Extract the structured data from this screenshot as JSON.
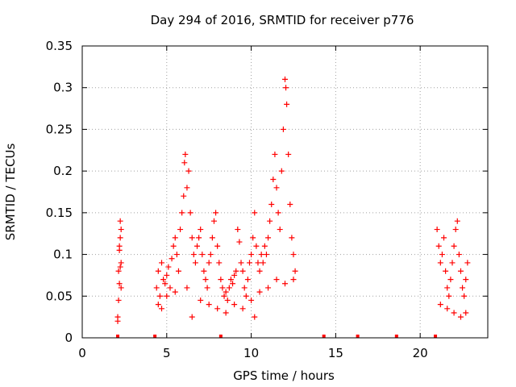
{
  "chart_data": {
    "type": "scatter",
    "title": "Day 294 of 2016, SRMTID for receiver p776",
    "xlabel": "GPS time / hours",
    "ylabel": "SRMTID / TECUs",
    "xlim": [
      0,
      24
    ],
    "ylim": [
      0,
      0.35
    ],
    "x_ticks": [
      0,
      5,
      10,
      15,
      20
    ],
    "x_tick_labels": [
      "0",
      "5",
      "10",
      "15",
      "20"
    ],
    "y_ticks": [
      0,
      0.05,
      0.1,
      0.15,
      0.2,
      0.25,
      0.3,
      0.35
    ],
    "y_tick_labels": [
      "0",
      "0.05",
      "0.1",
      "0.15",
      "0.2",
      "0.25",
      "0.3",
      "0.35"
    ],
    "grid": true,
    "marker": "plus",
    "color": "#ff0000",
    "zero_markers_x": [
      2.1,
      4.3,
      8.2,
      14.3,
      16.3,
      18.6,
      20.9
    ],
    "series": [
      {
        "points": [
          [
            2.1,
            0.02
          ],
          [
            2.15,
            0.045
          ],
          [
            2.2,
            0.065
          ],
          [
            2.25,
            0.085
          ],
          [
            2.3,
            0.09
          ],
          [
            2.2,
            0.11
          ],
          [
            2.25,
            0.12
          ],
          [
            2.3,
            0.13
          ],
          [
            2.25,
            0.14
          ],
          [
            2.2,
            0.105
          ],
          [
            2.15,
            0.08
          ],
          [
            2.1,
            0.025
          ],
          [
            2.3,
            0.06
          ],
          [
            4.4,
            0.06
          ],
          [
            4.5,
            0.08
          ],
          [
            4.6,
            0.05
          ],
          [
            4.7,
            0.09
          ],
          [
            4.8,
            0.07
          ],
          [
            4.9,
            0.065
          ],
          [
            5.0,
            0.075
          ],
          [
            5.1,
            0.085
          ],
          [
            5.2,
            0.06
          ],
          [
            5.3,
            0.095
          ],
          [
            5.4,
            0.11
          ],
          [
            5.5,
            0.12
          ],
          [
            5.6,
            0.1
          ],
          [
            5.7,
            0.08
          ],
          [
            5.8,
            0.13
          ],
          [
            5.9,
            0.15
          ],
          [
            6.0,
            0.17
          ],
          [
            6.05,
            0.21
          ],
          [
            6.1,
            0.22
          ],
          [
            6.2,
            0.18
          ],
          [
            6.3,
            0.2
          ],
          [
            6.4,
            0.15
          ],
          [
            6.5,
            0.12
          ],
          [
            6.6,
            0.1
          ],
          [
            6.7,
            0.09
          ],
          [
            6.8,
            0.11
          ],
          [
            6.9,
            0.12
          ],
          [
            7.0,
            0.13
          ],
          [
            7.1,
            0.1
          ],
          [
            7.2,
            0.08
          ],
          [
            7.3,
            0.07
          ],
          [
            7.4,
            0.06
          ],
          [
            7.5,
            0.09
          ],
          [
            7.6,
            0.1
          ],
          [
            7.7,
            0.12
          ],
          [
            7.8,
            0.14
          ],
          [
            7.9,
            0.15
          ],
          [
            8.0,
            0.11
          ],
          [
            8.1,
            0.09
          ],
          [
            8.2,
            0.07
          ],
          [
            8.3,
            0.06
          ],
          [
            8.4,
            0.05
          ],
          [
            8.5,
            0.055
          ],
          [
            8.6,
            0.045
          ],
          [
            8.7,
            0.06
          ],
          [
            8.8,
            0.07
          ],
          [
            8.9,
            0.065
          ],
          [
            9.0,
            0.075
          ],
          [
            9.1,
            0.08
          ],
          [
            9.2,
            0.13
          ],
          [
            9.3,
            0.115
          ],
          [
            9.4,
            0.09
          ],
          [
            9.5,
            0.08
          ],
          [
            9.6,
            0.06
          ],
          [
            9.7,
            0.05
          ],
          [
            9.8,
            0.07
          ],
          [
            9.9,
            0.09
          ],
          [
            10.0,
            0.1
          ],
          [
            10.1,
            0.12
          ],
          [
            10.2,
            0.15
          ],
          [
            10.3,
            0.11
          ],
          [
            10.4,
            0.09
          ],
          [
            10.5,
            0.08
          ],
          [
            10.6,
            0.1
          ],
          [
            10.7,
            0.09
          ],
          [
            10.8,
            0.11
          ],
          [
            10.9,
            0.1
          ],
          [
            11.0,
            0.12
          ],
          [
            11.1,
            0.14
          ],
          [
            11.2,
            0.16
          ],
          [
            11.3,
            0.19
          ],
          [
            11.4,
            0.22
          ],
          [
            11.5,
            0.18
          ],
          [
            11.6,
            0.15
          ],
          [
            11.7,
            0.13
          ],
          [
            11.8,
            0.2
          ],
          [
            11.9,
            0.25
          ],
          [
            12.0,
            0.31
          ],
          [
            12.05,
            0.3
          ],
          [
            12.1,
            0.28
          ],
          [
            12.2,
            0.22
          ],
          [
            12.3,
            0.16
          ],
          [
            12.4,
            0.12
          ],
          [
            12.5,
            0.1
          ],
          [
            12.6,
            0.08
          ],
          [
            4.5,
            0.04
          ],
          [
            4.7,
            0.035
          ],
          [
            5.0,
            0.05
          ],
          [
            5.5,
            0.055
          ],
          [
            6.2,
            0.06
          ],
          [
            6.5,
            0.025
          ],
          [
            7.0,
            0.045
          ],
          [
            7.5,
            0.04
          ],
          [
            8.0,
            0.035
          ],
          [
            8.5,
            0.03
          ],
          [
            9.0,
            0.04
          ],
          [
            9.5,
            0.035
          ],
          [
            10.0,
            0.045
          ],
          [
            10.2,
            0.025
          ],
          [
            10.5,
            0.055
          ],
          [
            11.0,
            0.06
          ],
          [
            11.5,
            0.07
          ],
          [
            12.0,
            0.065
          ],
          [
            12.5,
            0.07
          ],
          [
            21.0,
            0.13
          ],
          [
            21.1,
            0.11
          ],
          [
            21.2,
            0.09
          ],
          [
            21.3,
            0.1
          ],
          [
            21.4,
            0.12
          ],
          [
            21.5,
            0.08
          ],
          [
            21.6,
            0.06
          ],
          [
            21.7,
            0.05
          ],
          [
            21.8,
            0.07
          ],
          [
            21.9,
            0.09
          ],
          [
            22.0,
            0.11
          ],
          [
            22.1,
            0.13
          ],
          [
            22.2,
            0.14
          ],
          [
            22.3,
            0.1
          ],
          [
            22.4,
            0.08
          ],
          [
            22.5,
            0.06
          ],
          [
            22.6,
            0.05
          ],
          [
            22.7,
            0.07
          ],
          [
            22.8,
            0.09
          ],
          [
            21.2,
            0.04
          ],
          [
            21.6,
            0.035
          ],
          [
            22.0,
            0.03
          ],
          [
            22.4,
            0.025
          ],
          [
            22.7,
            0.03
          ]
        ]
      }
    ]
  }
}
